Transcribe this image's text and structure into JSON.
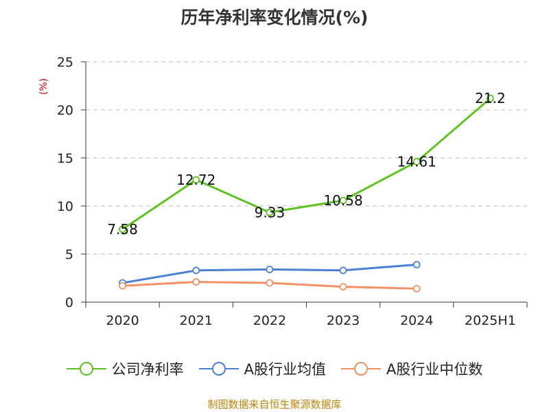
{
  "title": "历年净利率变化情况(%)",
  "source": "制图数据来自恒生聚源数据库",
  "y_unit": "(%)",
  "legend": [
    {
      "label": "公司净利率",
      "color": "#5cc21f"
    },
    {
      "label": "A股行业均值",
      "color": "#4a7fd8"
    },
    {
      "label": "A股行业中位数",
      "color": "#f59065"
    }
  ],
  "chart_data": {
    "type": "line",
    "title": "历年净利率变化情况(%)",
    "xlabel": "",
    "ylabel": "(%)",
    "categories": [
      "2020",
      "2021",
      "2022",
      "2023",
      "2024",
      "2025H1"
    ],
    "ylim": [
      0,
      25
    ],
    "yticks": [
      0,
      5,
      10,
      15,
      20,
      25
    ],
    "grid": true,
    "legend_position": "bottom",
    "series": [
      {
        "name": "公司净利率",
        "color": "#5cc21f",
        "values": [
          7.58,
          12.72,
          9.33,
          10.58,
          14.61,
          21.2
        ],
        "labels": [
          "7.58",
          "12.72",
          "9.33",
          "10.58",
          "14.61",
          "21.2"
        ]
      },
      {
        "name": "A股行业均值",
        "color": "#4a7fd8",
        "values": [
          2.0,
          3.3,
          3.4,
          3.3,
          3.9,
          null
        ]
      },
      {
        "name": "A股行业中位数",
        "color": "#f59065",
        "values": [
          1.7,
          2.1,
          2.0,
          1.6,
          1.4,
          null
        ]
      }
    ]
  }
}
